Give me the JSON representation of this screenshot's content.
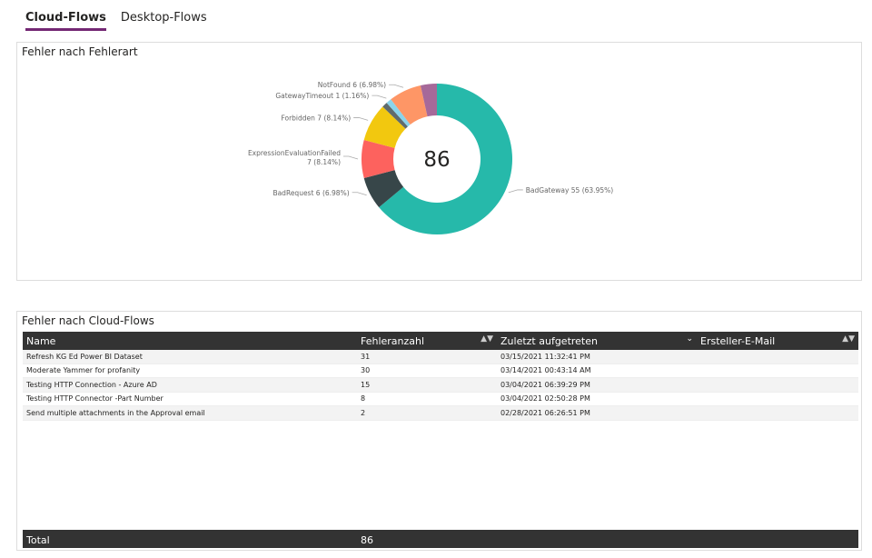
{
  "tabs": [
    {
      "label": "Cloud-Flows",
      "active": true
    },
    {
      "label": "Desktop-Flows",
      "active": false
    }
  ],
  "chart_panel": {
    "title": "Fehler nach Fehlerart"
  },
  "chart_data": {
    "type": "pie",
    "donut": true,
    "center_label": "86",
    "slices": [
      {
        "name": "BadGateway",
        "value": 55,
        "label": "BadGateway 55 (63.95%)",
        "color": "#26B9AA"
      },
      {
        "name": "BadRequest",
        "value": 6,
        "label": "BadRequest 6 (6.98%)",
        "color": "#374649"
      },
      {
        "name": "ExpressionEvaluationFailed",
        "value": 7,
        "label": "ExpressionEvaluationFailed",
        "label2": "7 (8.14%)",
        "color": "#FD625E"
      },
      {
        "name": "Forbidden",
        "value": 7,
        "label": "Forbidden 7 (8.14%)",
        "color": "#F2C80F"
      },
      {
        "name": "",
        "value": 1,
        "label": "",
        "color": "#5F6B6D"
      },
      {
        "name": "GatewayTimeout",
        "value": 1,
        "label": "GatewayTimeout 1 (1.16%)",
        "color": "#8AD4EB"
      },
      {
        "name": "NotFound",
        "value": 6,
        "label": "NotFound 6 (6.98%)",
        "color": "#FE9666"
      },
      {
        "name": "",
        "value": 3,
        "label": "",
        "color": "#A66999"
      }
    ]
  },
  "table_panel": {
    "title": "Fehler nach Cloud-Flows",
    "columns": [
      "Name",
      "Fehleranzahl",
      "Zuletzt aufgetreten",
      "Ersteller-E-Mail"
    ],
    "rows": [
      [
        "Refresh KG Ed Power BI Dataset",
        "31",
        "03/15/2021 11:32:41 PM",
        ""
      ],
      [
        "Moderate Yammer for profanity",
        "30",
        "03/14/2021 00:43:14 AM",
        ""
      ],
      [
        "Testing HTTP Connection - Azure AD",
        "15",
        "03/04/2021 06:39:29 PM",
        ""
      ],
      [
        "Testing HTTP Connector -Part Number",
        "8",
        "03/04/2021 02:50:28 PM",
        ""
      ],
      [
        "Send multiple attachments in the Approval email",
        "2",
        "02/28/2021 06:26:51 PM",
        ""
      ]
    ],
    "total_label": "Total",
    "total_value": "86"
  }
}
